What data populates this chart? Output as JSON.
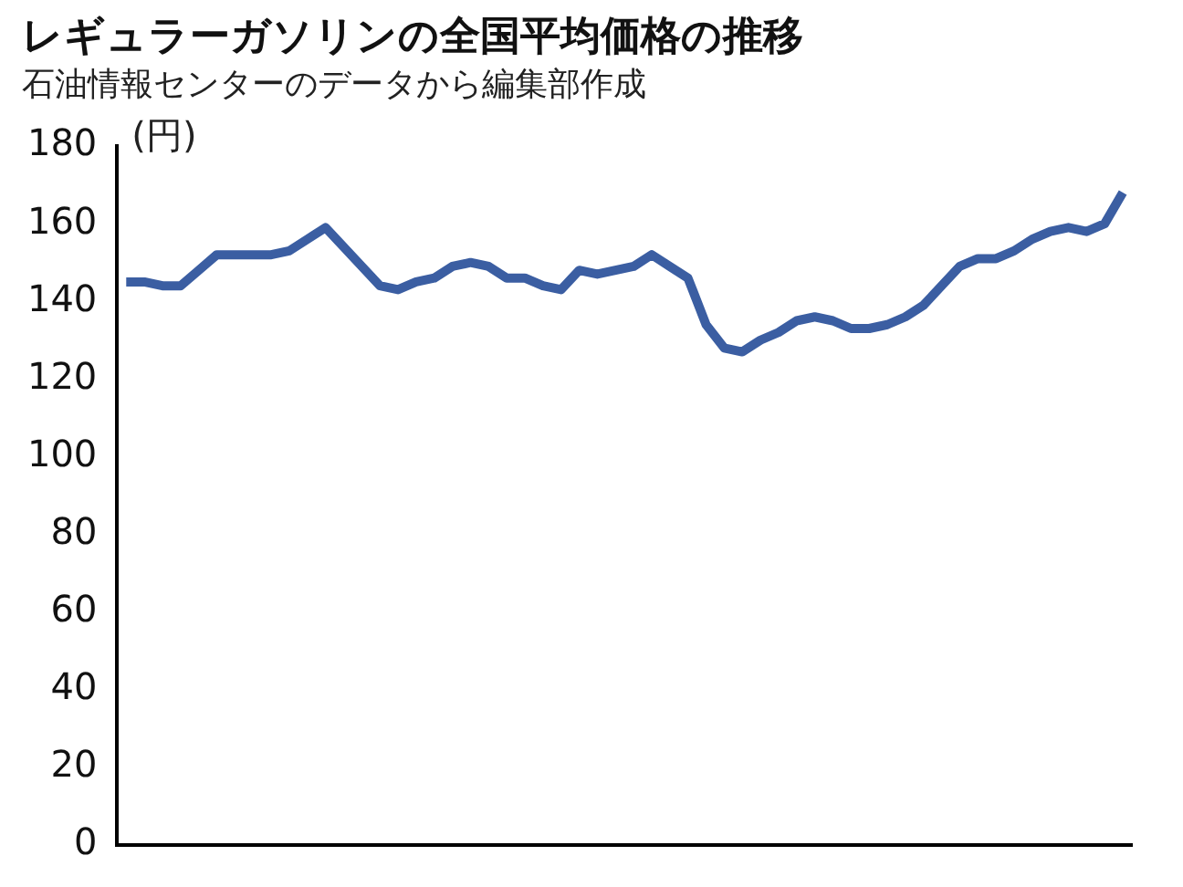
{
  "chart_data": {
    "type": "line",
    "title": "レギュラーガソリンの全国平均価格の推移",
    "subtitle": "石油情報センターのデータから編集部作成",
    "ylabel": "(円)",
    "categories": [
      null,
      null,
      null,
      null,
      null,
      null,
      null,
      null,
      null,
      null,
      null,
      null,
      null,
      null,
      null,
      null,
      null,
      null,
      null,
      null,
      null,
      null,
      null,
      null,
      null,
      null,
      null,
      null,
      null,
      null,
      null,
      null,
      null,
      null,
      null,
      null,
      null,
      null,
      null,
      null,
      null,
      null,
      null,
      null,
      null,
      null,
      null,
      null,
      null,
      null,
      null,
      null,
      null,
      null,
      null,
      null
    ],
    "series": [
      {
        "color": "#3b5ea2",
        "values": [
          145,
          145,
          144,
          144,
          148,
          152,
          152,
          152,
          152,
          153,
          156,
          159,
          154,
          149,
          144,
          143,
          145,
          146,
          149,
          150,
          149,
          146,
          146,
          144,
          143,
          148,
          147,
          148,
          149,
          152,
          149,
          146,
          134,
          128,
          127,
          130,
          132,
          135,
          136,
          135,
          133,
          133,
          134,
          136,
          139,
          144,
          149,
          151,
          151,
          153,
          156,
          158,
          159,
          158,
          160,
          168
        ]
      }
    ],
    "ylim": [
      0,
      180
    ],
    "yticks": [
      0,
      20,
      40,
      60,
      80,
      100,
      120,
      140,
      160,
      180
    ],
    "grid": false,
    "legend": false,
    "marker": "none",
    "line_style": "solid"
  }
}
